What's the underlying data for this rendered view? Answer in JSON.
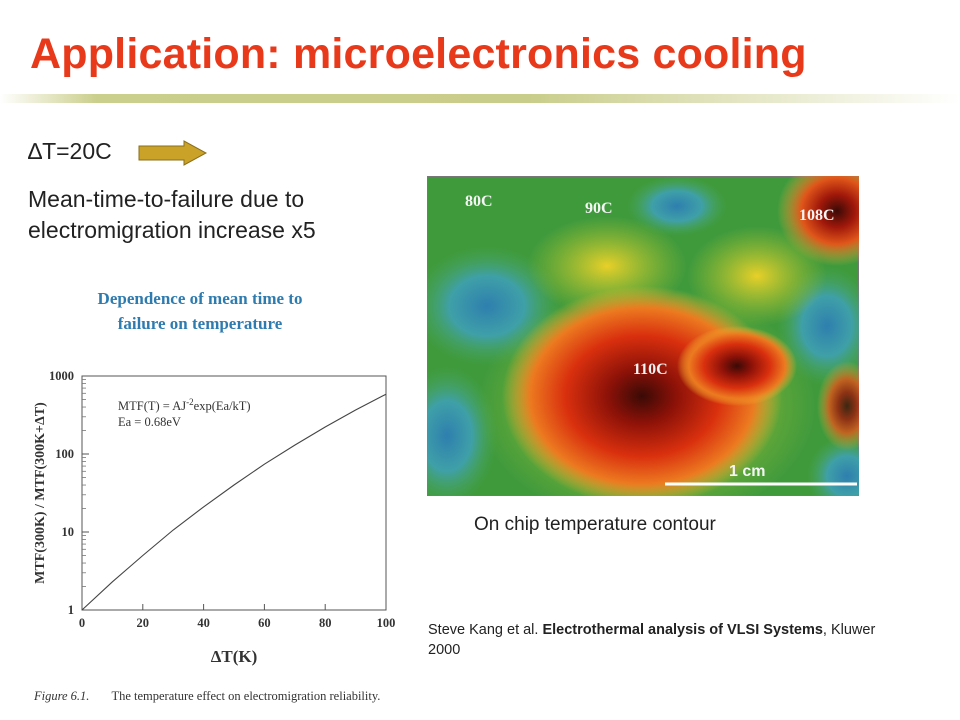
{
  "slide": {
    "title": "Application: microelectronics cooling",
    "delta_t": "∆T=20C",
    "mttf_line1": "Mean-time-to-failure due to",
    "mttf_line2": "electromigration increase x5",
    "dependence_line1": "Dependence of mean time to",
    "dependence_line2": "failure on temperature",
    "figure_number": "Figure 6.1.",
    "figure_caption": "The temperature effect on electromigration reliability.",
    "contour_caption": "On chip temperature contour",
    "reference_authors": "Steve Kang et al. ",
    "reference_title": "Electrothermal analysis of VLSI Systems",
    "reference_rest": ", Kluwer 2000",
    "arrow_color": "#c9a227"
  },
  "chart_data": {
    "type": "line",
    "title": "",
    "xlabel": "ΔT(K)",
    "ylabel": "MTF(300K) / MTF(300K+ΔT)",
    "xlim": [
      0,
      100
    ],
    "ylim": [
      1,
      1000
    ],
    "y_scale": "log",
    "grid": false,
    "x_ticks": [
      "0",
      "20",
      "40",
      "60",
      "80",
      "100"
    ],
    "y_ticks": [
      "1",
      "10",
      "100",
      "1000"
    ],
    "annotation_line1": "MTF(T) = AJ",
    "annotation_sup": "-2",
    "annotation_line1_end": "exp(Ea/kT)",
    "annotation_line2": "Ea = 0.68eV",
    "series": [
      {
        "x": [
          0,
          10,
          20,
          30,
          40,
          50,
          60,
          70,
          80,
          90,
          100
        ],
        "y": [
          1,
          2.3,
          5.0,
          10.6,
          21,
          40,
          74,
          130,
          222,
          366,
          585
        ]
      }
    ]
  },
  "contour_map": {
    "labels": [
      "80C",
      "90C",
      "108C",
      "110C"
    ],
    "scale_label": "1 cm"
  }
}
